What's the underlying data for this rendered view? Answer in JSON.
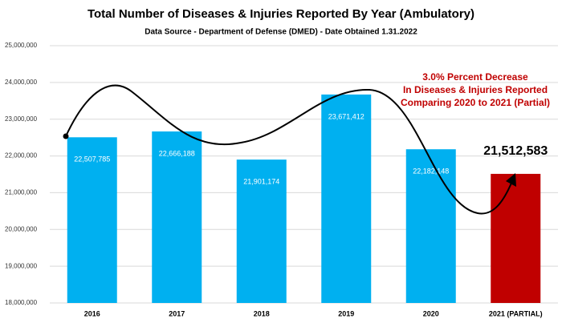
{
  "chart_data": {
    "type": "bar",
    "title": "Total Number of Diseases & Injuries Reported By Year (Ambulatory)",
    "subtitle": "Data Source - Department of Defense (DMED) - Date Obtained 1.31.2022",
    "annotation": [
      "3.0% Percent Decrease",
      "In Diseases & Injuries Reported",
      "Comparing 2020 to 2021 (Partial)"
    ],
    "categories": [
      "2016",
      "2017",
      "2018",
      "2019",
      "2020",
      "2021 (PARTIAL)"
    ],
    "values": [
      22507785,
      22666188,
      21901174,
      23671412,
      22182148,
      21512583
    ],
    "value_labels": [
      "22,507,785",
      "22,666,188",
      "21,901,174",
      "23,671,412",
      "22,182,148",
      "21,512,583"
    ],
    "colors": [
      "#00b0f0",
      "#00b0f0",
      "#00b0f0",
      "#00b0f0",
      "#00b0f0",
      "#c00000"
    ],
    "ylim": [
      18000000,
      25000000
    ],
    "yticks": [
      {
        "value": 18000000,
        "label": "18,000,000"
      },
      {
        "value": 19000000,
        "label": "19,000,000"
      },
      {
        "value": 20000000,
        "label": "20,000,000"
      },
      {
        "value": 21000000,
        "label": "21,000,000"
      },
      {
        "value": 22000000,
        "label": "22,000,000"
      },
      {
        "value": 23000000,
        "label": "23,000,000"
      },
      {
        "value": 24000000,
        "label": "24,000,000"
      },
      {
        "value": 25000000,
        "label": "25,000,000"
      }
    ],
    "grid": true
  }
}
